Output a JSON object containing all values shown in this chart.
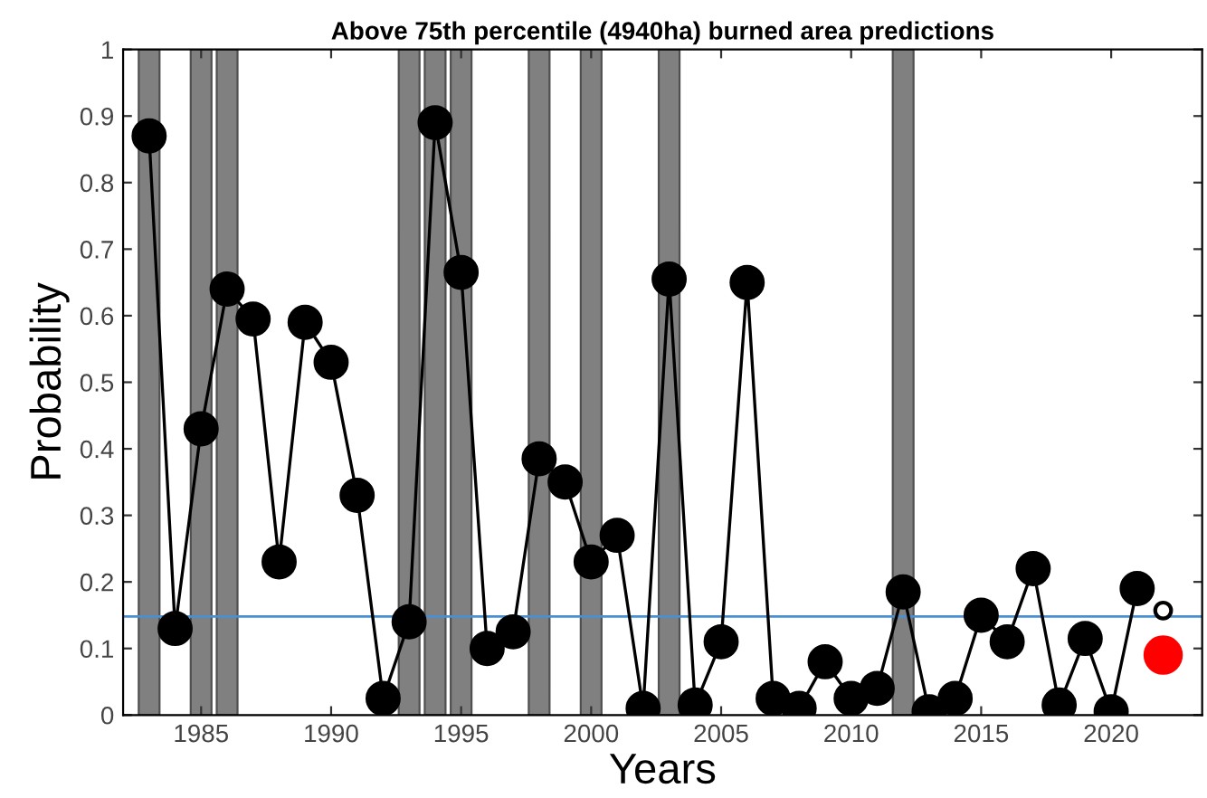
{
  "chart_data": {
    "type": "line",
    "title": "Above 75th percentile (4940ha) burned area predictions",
    "xlabel": "Years",
    "ylabel": "Probability",
    "series": [
      {
        "color": "#000000",
        "x": [
          1983,
          1984,
          1985,
          1986,
          1987,
          1988,
          1989,
          1990,
          1991,
          1992,
          1993,
          1994,
          1995,
          1996,
          1997,
          1998,
          1999,
          2000,
          2001,
          2002,
          2003,
          2004,
          2005,
          2006,
          2007,
          2008,
          2009,
          2010,
          2011,
          2012,
          2013,
          2014,
          2015,
          2016,
          2017,
          2018,
          2019,
          2020,
          2021
        ],
        "values": [
          0.87,
          0.13,
          0.43,
          0.64,
          0.595,
          0.23,
          0.59,
          0.53,
          0.33,
          0.025,
          0.14,
          0.89,
          0.665,
          0.1,
          0.125,
          0.385,
          0.35,
          0.23,
          0.27,
          0.01,
          0.655,
          0.015,
          0.11,
          0.65,
          0.025,
          0.01,
          0.08,
          0.025,
          0.04,
          0.185,
          0.005,
          0.025,
          0.15,
          0.11,
          0.22,
          0.015,
          0.115,
          0.005,
          0.19
        ]
      },
      {
        "type": "scatter",
        "color": "#ffffff",
        "x": [
          2022
        ],
        "values": [
          0.157
        ]
      },
      {
        "type": "scatter",
        "color": "#ff0000",
        "x": [
          2022
        ],
        "values": [
          0.09
        ]
      }
    ],
    "bands": [
      {
        "axis": "x",
        "from": 1982.6,
        "to": 1983.4,
        "color": "#808080"
      },
      {
        "axis": "x",
        "from": 1984.6,
        "to": 1985.4,
        "color": "#808080"
      },
      {
        "axis": "x",
        "from": 1985.6,
        "to": 1986.4,
        "color": "#808080"
      },
      {
        "axis": "x",
        "from": 1992.6,
        "to": 1993.4,
        "color": "#808080"
      },
      {
        "axis": "x",
        "from": 1993.6,
        "to": 1994.4,
        "color": "#808080"
      },
      {
        "axis": "x",
        "from": 1994.6,
        "to": 1995.4,
        "color": "#808080"
      },
      {
        "axis": "x",
        "from": 1997.6,
        "to": 1998.4,
        "color": "#808080"
      },
      {
        "axis": "x",
        "from": 1999.6,
        "to": 2000.4,
        "color": "#808080"
      },
      {
        "axis": "x",
        "from": 2002.6,
        "to": 2003.4,
        "color": "#808080"
      },
      {
        "axis": "x",
        "from": 2011.6,
        "to": 2012.4,
        "color": "#808080"
      }
    ],
    "ref_lines": [
      {
        "axis": "y",
        "value": 0.148,
        "color": "#4a90d0"
      }
    ],
    "xlim": [
      1982,
      2023.5
    ],
    "xticks": [
      1985,
      1990,
      1995,
      2000,
      2005,
      2010,
      2015,
      2020
    ],
    "ylim": [
      0,
      1
    ],
    "yticks": [
      0,
      0.1,
      0.2,
      0.3,
      0.4,
      0.5,
      0.6,
      0.7,
      0.8,
      0.9,
      1
    ],
    "marker": "circle",
    "line_style": "solid",
    "grid": false,
    "legend": false
  }
}
